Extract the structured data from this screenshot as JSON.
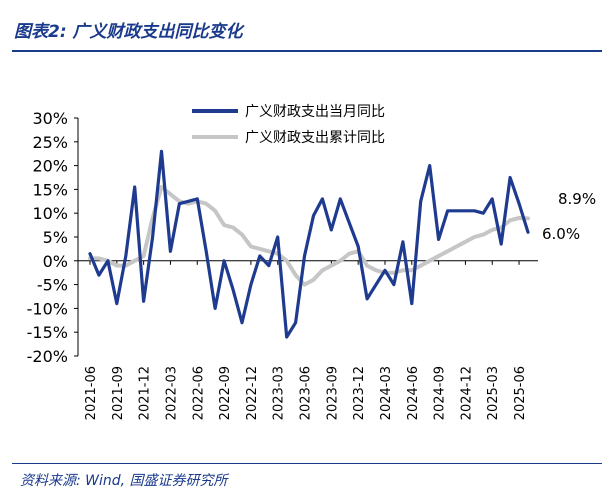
{
  "header": {
    "title": "图表2: 广义财政支出同比变化"
  },
  "footer": {
    "source": "资料来源: Wind, 国盛证券研究所"
  },
  "chart_data": {
    "type": "line",
    "title": "",
    "xlabel": "",
    "ylabel": "",
    "ylim": [
      -20,
      30
    ],
    "y_ticks": [
      30,
      25,
      20,
      15,
      10,
      5,
      0,
      -5,
      -10,
      -15,
      -20
    ],
    "y_tick_labels": [
      "30%",
      "25%",
      "20%",
      "15%",
      "10%",
      "5%",
      "0%",
      "-5%",
      "-10%",
      "-15%",
      "-20%"
    ],
    "x_tick_labels": [
      "2021-06",
      "2021-09",
      "2021-12",
      "2022-03",
      "2022-06",
      "2022-09",
      "2022-12",
      "2023-03",
      "2023-06",
      "2023-09",
      "2023-12",
      "2024-03",
      "2024-06",
      "2024-09",
      "2024-12",
      "2025-03",
      "2025-06"
    ],
    "x": [
      "2021-06",
      "2021-07",
      "2021-08",
      "2021-09",
      "2021-10",
      "2021-11",
      "2021-12",
      "2022-01",
      "2022-02",
      "2022-03",
      "2022-04",
      "2022-05",
      "2022-06",
      "2022-07",
      "2022-08",
      "2022-09",
      "2022-10",
      "2022-11",
      "2022-12",
      "2023-01",
      "2023-02",
      "2023-03",
      "2023-04",
      "2023-05",
      "2023-06",
      "2023-07",
      "2023-08",
      "2023-09",
      "2023-10",
      "2023-11",
      "2023-12",
      "2024-01",
      "2024-02",
      "2024-03",
      "2024-04",
      "2024-05",
      "2024-06",
      "2024-07",
      "2024-08",
      "2024-09",
      "2024-10",
      "2024-11",
      "2024-12",
      "2025-01",
      "2025-02",
      "2025-03",
      "2025-04",
      "2025-05",
      "2025-06",
      "2025-07"
    ],
    "series": [
      {
        "name": "广义财政支出当月同比",
        "color": "#1f3b8f",
        "values": [
          1.5,
          -3,
          0,
          -9,
          1,
          15.5,
          -8.5,
          5,
          23,
          2,
          12,
          12.5,
          13,
          2,
          -10,
          0,
          -6,
          -13,
          -5,
          1,
          -1,
          5,
          -16,
          -13,
          1,
          9.5,
          13,
          6.5,
          13,
          8,
          3,
          -8,
          -5,
          -2,
          -5,
          4,
          -9,
          12.5,
          20,
          4.5,
          10.5,
          10.5,
          10.5,
          10.5,
          10,
          13,
          3.5,
          17.5,
          12,
          6
        ]
      },
      {
        "name": "广义财政支出累计同比",
        "color": "#c6c6c6",
        "values": [
          0.5,
          0.5,
          0,
          -1,
          -1,
          0,
          1,
          9,
          15.5,
          14,
          12.5,
          12,
          12.5,
          12,
          10.5,
          7.5,
          7,
          5.5,
          3,
          2.5,
          2,
          1.5,
          0,
          -3,
          -5,
          -4,
          -2,
          -1,
          0,
          1.5,
          2,
          -1,
          -2,
          -2.5,
          -2.5,
          -2,
          -2,
          -1,
          0,
          1,
          2,
          3,
          4,
          5,
          5.5,
          6.5,
          7,
          8.5,
          9,
          8.9
        ]
      }
    ],
    "end_labels": [
      "8.9%",
      "6.0%"
    ],
    "legend": "top-right"
  }
}
